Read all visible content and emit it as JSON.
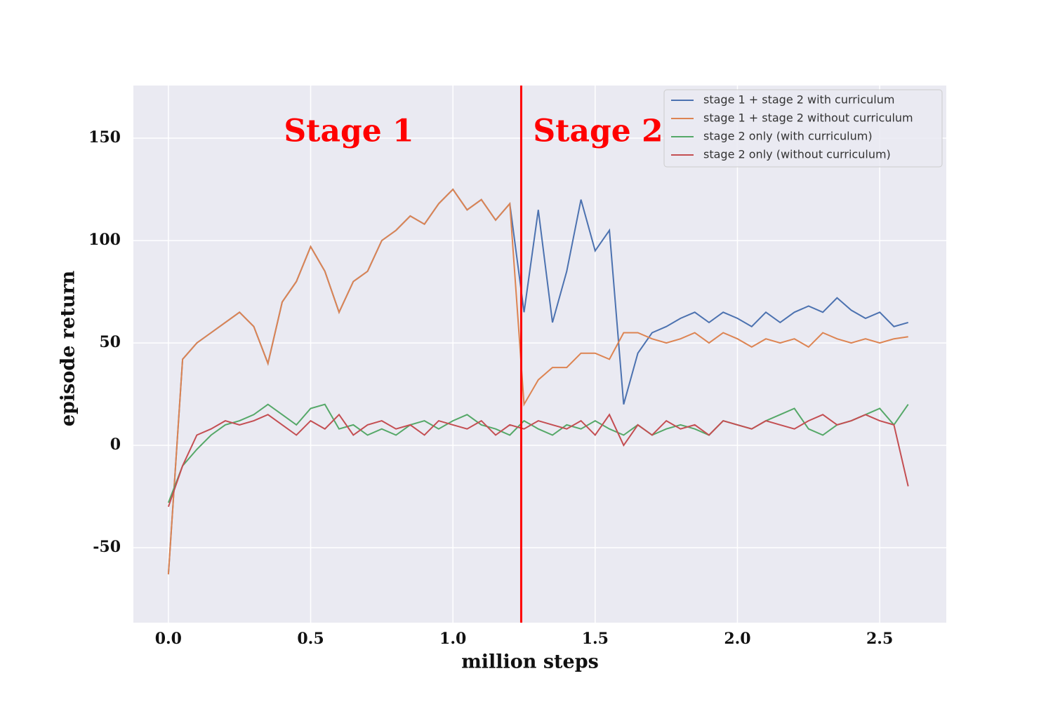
{
  "chart_data": {
    "type": "line",
    "xlabel": "million steps",
    "ylabel": "episode return",
    "xlim": [
      -0.123,
      2.734
    ],
    "ylim": [
      -86.6,
      175.7
    ],
    "xticks": [
      {
        "value": 0,
        "label": "0.0"
      },
      {
        "value": 0.5,
        "label": "0.5"
      },
      {
        "value": 1,
        "label": "1.0"
      },
      {
        "value": 1.5,
        "label": "1.5"
      },
      {
        "value": 2,
        "label": "2.0"
      },
      {
        "value": 2.5,
        "label": "2.5"
      }
    ],
    "yticks": [
      -50,
      0,
      50,
      100,
      150
    ],
    "grid": true,
    "background": "#eaeaf2",
    "legend": "upper right",
    "vline": {
      "x": 1.24,
      "color": "#ff0000"
    },
    "annotations": [
      "Stage 1",
      "Stage 2"
    ],
    "x": [
      0,
      0.05,
      0.1,
      0.15,
      0.2,
      0.25,
      0.3,
      0.35,
      0.4,
      0.45,
      0.5,
      0.55,
      0.6,
      0.65,
      0.7,
      0.75,
      0.8,
      0.85,
      0.9,
      0.95,
      1.0,
      1.05,
      1.1,
      1.15,
      1.2,
      1.25,
      1.3,
      1.35,
      1.4,
      1.45,
      1.5,
      1.55,
      1.6,
      1.65,
      1.7,
      1.75,
      1.8,
      1.85,
      1.9,
      1.95,
      2.0,
      2.05,
      2.1,
      2.15,
      2.2,
      2.25,
      2.3,
      2.35,
      2.4,
      2.45,
      2.5,
      2.55,
      2.6
    ],
    "series": [
      {
        "name": "stage 1 + stage 2 with curriculum",
        "color": "#4c72b0",
        "values": [
          -63,
          42,
          50,
          55,
          60,
          65,
          58,
          40,
          70,
          80,
          97,
          85,
          65,
          80,
          85,
          100,
          105,
          112,
          108,
          118,
          125,
          115,
          120,
          110,
          118,
          65,
          115,
          60,
          85,
          120,
          95,
          105,
          20,
          45,
          55,
          58,
          62,
          65,
          60,
          65,
          62,
          58,
          65,
          60,
          65,
          68,
          65,
          72,
          66,
          62,
          65,
          58,
          60
        ]
      },
      {
        "name": "stage 1 + stage 2 without curriculum",
        "color": "#dd8452",
        "values": [
          -63,
          42,
          50,
          55,
          60,
          65,
          58,
          40,
          70,
          80,
          97,
          85,
          65,
          80,
          85,
          100,
          105,
          112,
          108,
          118,
          125,
          115,
          120,
          110,
          118,
          20,
          32,
          38,
          38,
          45,
          45,
          42,
          55,
          55,
          52,
          50,
          52,
          55,
          50,
          55,
          52,
          48,
          52,
          50,
          52,
          48,
          55,
          52,
          50,
          52,
          50,
          52,
          53
        ]
      },
      {
        "name": "stage 2 only (with curriculum)",
        "color": "#55a868",
        "values": [
          -28,
          -10,
          -2,
          5,
          10,
          12,
          15,
          20,
          15,
          10,
          18,
          20,
          8,
          10,
          5,
          8,
          5,
          10,
          12,
          8,
          12,
          15,
          10,
          8,
          5,
          12,
          8,
          5,
          10,
          8,
          12,
          8,
          5,
          10,
          5,
          8,
          10,
          8,
          5,
          12,
          10,
          8,
          12,
          15,
          18,
          8,
          5,
          10,
          12,
          15,
          18,
          10,
          20
        ]
      },
      {
        "name": "stage 2 only (without curriculum)",
        "color": "#c44e52",
        "values": [
          -30,
          -10,
          5,
          8,
          12,
          10,
          12,
          15,
          10,
          5,
          12,
          8,
          15,
          5,
          10,
          12,
          8,
          10,
          5,
          12,
          10,
          8,
          12,
          5,
          10,
          8,
          12,
          10,
          8,
          12,
          5,
          15,
          0,
          10,
          5,
          12,
          8,
          10,
          5,
          12,
          10,
          8,
          12,
          10,
          8,
          12,
          15,
          10,
          12,
          15,
          12,
          10,
          -20
        ]
      }
    ]
  }
}
